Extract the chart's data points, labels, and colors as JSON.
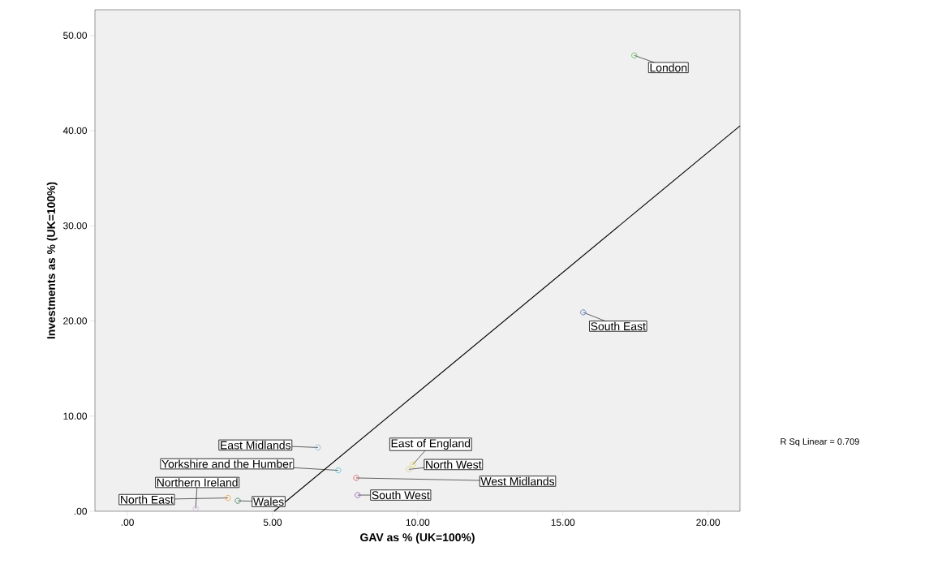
{
  "chart_data": {
    "type": "scatter",
    "xlabel": "GAV as % (UK=100%)",
    "ylabel": "Investments as % (UK=100%)",
    "xlim": [
      -1.12,
      21.1
    ],
    "ylim": [
      0,
      52.7
    ],
    "xticks": [
      {
        "value": 0,
        "label": ".00"
      },
      {
        "value": 5,
        "label": "5.00"
      },
      {
        "value": 10,
        "label": "10.00"
      },
      {
        "value": 15,
        "label": "15.00"
      },
      {
        "value": 20,
        "label": "20.00"
      }
    ],
    "yticks": [
      {
        "value": 0,
        "label": ".00"
      },
      {
        "value": 10,
        "label": "10.00"
      },
      {
        "value": 20,
        "label": "20.00"
      },
      {
        "value": 30,
        "label": "30.00"
      },
      {
        "value": 40,
        "label": "40.00"
      },
      {
        "value": 50,
        "label": "50.00"
      }
    ],
    "marker": "circle",
    "grid": false,
    "series": [
      {
        "name": "London",
        "color": "#4cb84c",
        "x": [
          17.46
        ],
        "values": [
          47.9
        ]
      },
      {
        "name": "South East",
        "color": "#4a6fc4",
        "x": [
          15.7
        ],
        "values": [
          20.9
        ]
      },
      {
        "name": "East Midlands",
        "color": "#80b0e0",
        "x": [
          6.56
        ],
        "values": [
          6.7
        ]
      },
      {
        "name": "Yorkshire and the Humber",
        "color": "#40c0d0",
        "x": [
          7.26
        ],
        "values": [
          4.3
        ]
      },
      {
        "name": "West Midlands",
        "color": "#e05050",
        "x": [
          7.88
        ],
        "values": [
          3.5
        ]
      },
      {
        "name": "South West",
        "color": "#9050b0",
        "x": [
          7.93
        ],
        "values": [
          1.7
        ]
      },
      {
        "name": "East of England",
        "color": "#e0d830",
        "x": [
          9.83
        ],
        "values": [
          4.9
        ]
      },
      {
        "name": "North West",
        "color": "#d0c890",
        "x": [
          9.69
        ],
        "values": [
          4.4
        ]
      },
      {
        "name": "North East",
        "color": "#f0a030",
        "x": [
          3.46
        ],
        "values": [
          1.4
        ]
      },
      {
        "name": "Wales",
        "color": "#308050",
        "x": [
          3.8
        ],
        "values": [
          1.1
        ]
      },
      {
        "name": "Northern Ireland",
        "color": "#d0b0e0",
        "x": [
          2.35
        ],
        "values": [
          0.3
        ]
      },
      {
        "type": "line",
        "marker": "none",
        "color": "#000000",
        "x": [
          5.05,
          21.1
        ],
        "values": [
          0,
          40.5
        ]
      }
    ],
    "annotations": [
      "R Sq Linear = 0.709"
    ]
  }
}
